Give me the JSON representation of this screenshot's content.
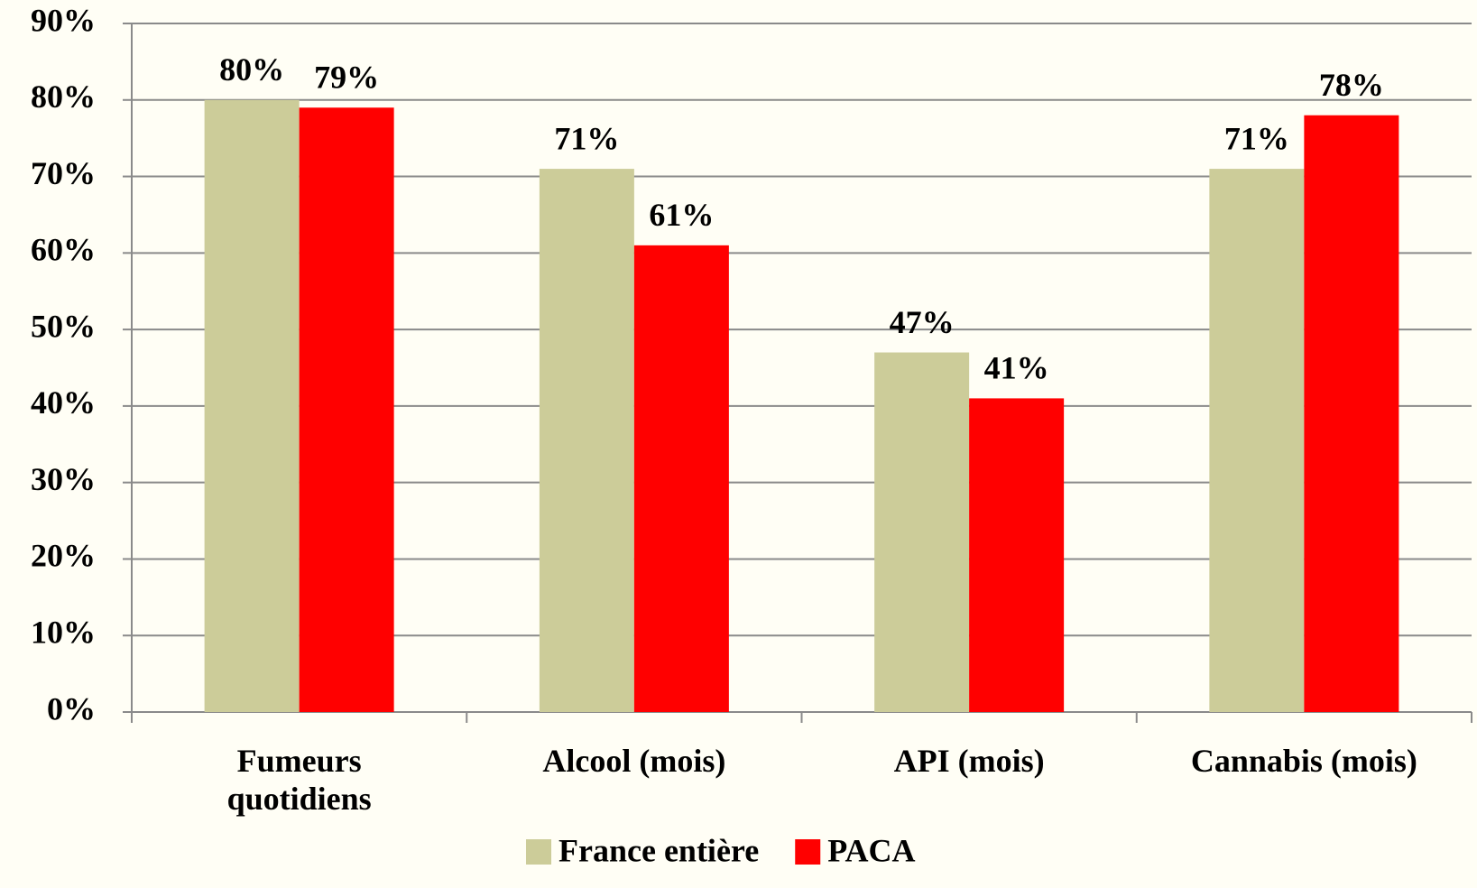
{
  "chart_data": {
    "type": "bar",
    "categories": [
      "Fumeurs\nquotidiens",
      "Alcool (mois)",
      "API (mois)",
      "Cannabis (mois)"
    ],
    "series": [
      {
        "name": "France entière",
        "color": "#cccc99",
        "values": [
          80,
          71,
          47,
          71
        ],
        "value_labels": [
          "80%",
          "71%",
          "47%",
          "71%"
        ]
      },
      {
        "name": "PACA",
        "color": "#ff0000",
        "values": [
          79,
          61,
          41,
          78
        ],
        "value_labels": [
          "79%",
          "61%",
          "41%",
          "78%"
        ]
      }
    ],
    "ylim": [
      0,
      90
    ],
    "yticks": [
      {
        "value": 0,
        "label": "0%"
      },
      {
        "value": 10,
        "label": "10%"
      },
      {
        "value": 20,
        "label": "20%"
      },
      {
        "value": 30,
        "label": "30%"
      },
      {
        "value": 40,
        "label": "40%"
      },
      {
        "value": 50,
        "label": "50%"
      },
      {
        "value": 60,
        "label": "60%"
      },
      {
        "value": 70,
        "label": "70%"
      },
      {
        "value": 80,
        "label": "80%"
      },
      {
        "value": 90,
        "label": "90%"
      }
    ],
    "grid": true,
    "legend": "bottom"
  }
}
